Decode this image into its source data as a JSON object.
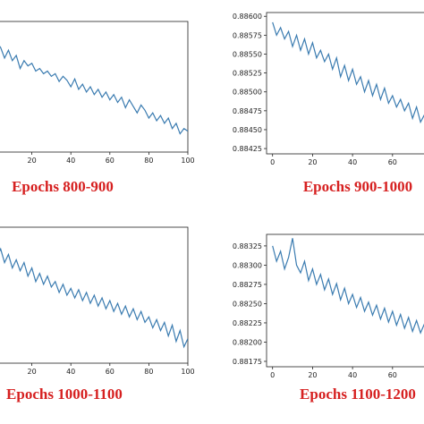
{
  "chart_data": [
    {
      "type": "line",
      "caption": "Epochs 800-900",
      "x_ticks": [
        "20",
        "40",
        "60",
        "80",
        "100"
      ],
      "y_ticks": [],
      "xlim": [
        0,
        100
      ],
      "ylim": [
        0.0,
        1.0
      ],
      "series": [
        {
          "color": "#3a7bb0",
          "x": [
            0,
            2,
            4,
            6,
            8,
            10,
            12,
            14,
            16,
            18,
            20,
            22,
            24,
            26,
            28,
            30,
            32,
            34,
            36,
            38,
            40,
            42,
            44,
            46,
            48,
            50,
            52,
            54,
            56,
            58,
            60,
            62,
            64,
            66,
            68,
            70,
            72,
            74,
            76,
            78,
            80,
            82,
            84,
            86,
            88,
            90,
            92,
            94,
            96,
            98,
            100
          ],
          "y": [
            0.8,
            0.84,
            0.8,
            0.72,
            0.78,
            0.7,
            0.74,
            0.64,
            0.7,
            0.66,
            0.68,
            0.62,
            0.64,
            0.6,
            0.62,
            0.58,
            0.6,
            0.54,
            0.58,
            0.55,
            0.5,
            0.56,
            0.48,
            0.52,
            0.46,
            0.5,
            0.44,
            0.48,
            0.42,
            0.46,
            0.4,
            0.44,
            0.38,
            0.42,
            0.34,
            0.4,
            0.35,
            0.3,
            0.36,
            0.32,
            0.26,
            0.3,
            0.24,
            0.28,
            0.22,
            0.26,
            0.18,
            0.22,
            0.14,
            0.18,
            0.16
          ]
        }
      ]
    },
    {
      "type": "line",
      "caption": "Epochs 900-1000",
      "x_ticks": [
        "0",
        "20",
        "40",
        "60"
      ],
      "y_ticks": [
        "0.88600",
        "0.88575",
        "0.88550",
        "0.88525",
        "0.88500",
        "0.88475",
        "0.88450",
        "0.88425"
      ],
      "xlim": [
        -3,
        82
      ],
      "ylim": [
        0.88418,
        0.88605
      ],
      "series": [
        {
          "color": "#3a7bb0",
          "x": [
            0,
            2,
            4,
            6,
            8,
            10,
            12,
            14,
            16,
            18,
            20,
            22,
            24,
            26,
            28,
            30,
            32,
            34,
            36,
            38,
            40,
            42,
            44,
            46,
            48,
            50,
            52,
            54,
            56,
            58,
            60,
            62,
            64,
            66,
            68,
            70,
            72,
            74,
            76,
            78,
            80
          ],
          "y": [
            0.88592,
            0.88575,
            0.88585,
            0.8857,
            0.8858,
            0.8856,
            0.88575,
            0.88555,
            0.8857,
            0.8855,
            0.88565,
            0.88545,
            0.88555,
            0.8854,
            0.8855,
            0.8853,
            0.88545,
            0.8852,
            0.88535,
            0.88515,
            0.8853,
            0.8851,
            0.8852,
            0.885,
            0.88515,
            0.88495,
            0.8851,
            0.8849,
            0.88505,
            0.88485,
            0.88495,
            0.8848,
            0.8849,
            0.88475,
            0.88485,
            0.88465,
            0.8848,
            0.8846,
            0.8847,
            0.8845,
            0.8846
          ]
        }
      ]
    },
    {
      "type": "line",
      "caption": "Epochs 1000-1100",
      "x_ticks": [
        "20",
        "40",
        "60",
        "80",
        "100"
      ],
      "y_ticks": [],
      "xlim": [
        0,
        100
      ],
      "ylim": [
        0.0,
        1.0
      ],
      "series": [
        {
          "color": "#3a7bb0",
          "x": [
            0,
            2,
            4,
            6,
            8,
            10,
            12,
            14,
            16,
            18,
            20,
            22,
            24,
            26,
            28,
            30,
            32,
            34,
            36,
            38,
            40,
            42,
            44,
            46,
            48,
            50,
            52,
            54,
            56,
            58,
            60,
            62,
            64,
            66,
            68,
            70,
            72,
            74,
            76,
            78,
            80,
            82,
            84,
            86,
            88,
            90,
            92,
            94,
            96,
            98,
            100
          ],
          "y": [
            0.82,
            0.78,
            0.84,
            0.74,
            0.8,
            0.7,
            0.76,
            0.68,
            0.74,
            0.64,
            0.7,
            0.6,
            0.66,
            0.58,
            0.64,
            0.56,
            0.6,
            0.52,
            0.58,
            0.5,
            0.55,
            0.48,
            0.54,
            0.46,
            0.52,
            0.44,
            0.5,
            0.42,
            0.48,
            0.4,
            0.46,
            0.38,
            0.44,
            0.36,
            0.42,
            0.34,
            0.4,
            0.32,
            0.38,
            0.3,
            0.34,
            0.26,
            0.32,
            0.24,
            0.3,
            0.2,
            0.28,
            0.16,
            0.24,
            0.12,
            0.18
          ]
        }
      ]
    },
    {
      "type": "line",
      "caption": "Epochs 1100-1200",
      "x_ticks": [
        "0",
        "20",
        "40",
        "60"
      ],
      "y_ticks": [
        "0.88325",
        "0.88300",
        "0.88275",
        "0.88250",
        "0.88225",
        "0.88200",
        "0.88175"
      ],
      "xlim": [
        -3,
        82
      ],
      "ylim": [
        0.88168,
        0.8834
      ],
      "series": [
        {
          "color": "#3a7bb0",
          "x": [
            0,
            2,
            4,
            6,
            8,
            10,
            12,
            14,
            16,
            18,
            20,
            22,
            24,
            26,
            28,
            30,
            32,
            34,
            36,
            38,
            40,
            42,
            44,
            46,
            48,
            50,
            52,
            54,
            56,
            58,
            60,
            62,
            64,
            66,
            68,
            70,
            72,
            74,
            76,
            78,
            80
          ],
          "y": [
            0.88325,
            0.88305,
            0.88318,
            0.88295,
            0.8831,
            0.88335,
            0.883,
            0.8829,
            0.88305,
            0.8828,
            0.88295,
            0.88275,
            0.88288,
            0.88268,
            0.88282,
            0.88262,
            0.88276,
            0.88255,
            0.8827,
            0.8825,
            0.88262,
            0.88245,
            0.88258,
            0.8824,
            0.88252,
            0.88235,
            0.88248,
            0.8823,
            0.88244,
            0.88226,
            0.8824,
            0.88222,
            0.88236,
            0.88218,
            0.88232,
            0.88214,
            0.88228,
            0.88212,
            0.88224,
            0.88208,
            0.8822
          ]
        }
      ]
    }
  ]
}
